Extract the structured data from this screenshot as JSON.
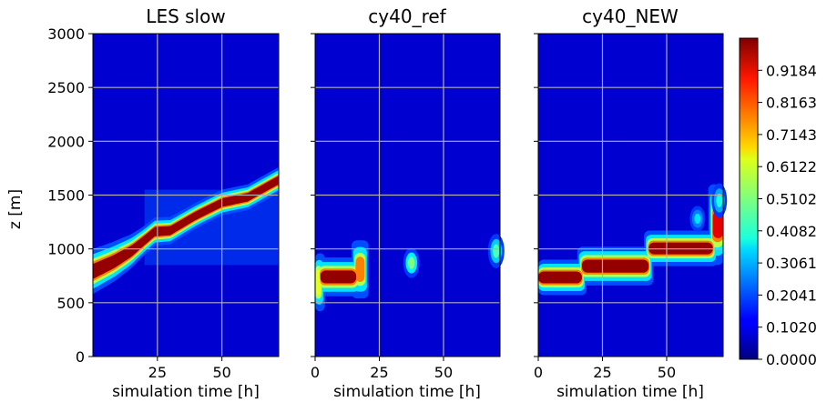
{
  "chart_data": {
    "type": "heatmap",
    "shared_ylabel": "z [m]",
    "ylim": [
      0,
      3000
    ],
    "yticks": [
      "0",
      "500",
      "1000",
      "1500",
      "2000",
      "2500",
      "3000"
    ],
    "grid": true,
    "panels": [
      {
        "title": "LES slow",
        "xlabel": "simulation time [h]",
        "xlim": [
          0,
          72
        ],
        "xticks": [
          "25",
          "50"
        ],
        "x_tick_values": [
          25,
          50
        ],
        "layer": {
          "kind": "rising",
          "points": [
            [
              0,
              790
            ],
            [
              8,
              880
            ],
            [
              15,
              980
            ],
            [
              24,
              1160
            ],
            [
              30,
              1170
            ],
            [
              40,
              1310
            ],
            [
              50,
              1430
            ],
            [
              60,
              1480
            ],
            [
              72,
              1640
            ]
          ],
          "thickness": [
            [
              0,
              140
            ],
            [
              10,
              120
            ],
            [
              20,
              90
            ],
            [
              40,
              80
            ],
            [
              72,
              80
            ]
          ]
        },
        "faint_regions": [
          {
            "x": [
              20,
              72
            ],
            "y": [
              850,
              1550
            ],
            "level": 0.06
          }
        ]
      },
      {
        "title": "cy40_ref",
        "xlabel": "simulation time [h]",
        "xlim": [
          0,
          72
        ],
        "xticks": [
          "0",
          "25",
          "50"
        ],
        "x_tick_values": [
          0,
          25,
          50
        ],
        "layer": {
          "kind": "segments",
          "segments": [
            {
              "x": [
                0.5,
                2
              ],
              "y": [
                600,
                780
              ],
              "level": 0.6
            },
            {
              "x": [
                2,
                16
              ],
              "y": [
                680,
                800
              ],
              "level": 1.0
            },
            {
              "x": [
                16,
                19
              ],
              "y": [
                720,
                900
              ],
              "level": 0.75
            }
          ]
        },
        "blobs": [
          {
            "x": 37.5,
            "y": 870,
            "rx": 1.6,
            "ry": 70,
            "level": 0.35
          },
          {
            "x": 70.5,
            "y": 980,
            "rx": 1.6,
            "ry": 80,
            "level": 0.3
          }
        ]
      },
      {
        "title": "cy40_NEW",
        "xlabel": "simulation time [h]",
        "xlim": [
          0,
          72
        ],
        "xticks": [
          "0",
          "25",
          "50"
        ],
        "x_tick_values": [
          0,
          25,
          50
        ],
        "layer": {
          "kind": "segments",
          "segments": [
            {
              "x": [
                0,
                17
              ],
              "y": [
                680,
                790
              ],
              "level": 1.0
            },
            {
              "x": [
                17,
                43
              ],
              "y": [
                780,
                900
              ],
              "level": 1.0
            },
            {
              "x": [
                43,
                68
              ],
              "y": [
                950,
                1060
              ],
              "level": 1.0
            },
            {
              "x": [
                68,
                72
              ],
              "y": [
                1100,
                1350
              ],
              "level": 0.9
            }
          ]
        },
        "blobs": [
          {
            "x": 62,
            "y": 1280,
            "rx": 1.5,
            "ry": 60,
            "level": 0.2
          },
          {
            "x": 70.5,
            "y": 1450,
            "rx": 1.5,
            "ry": 80,
            "level": 0.25
          }
        ]
      }
    ],
    "colorbar": {
      "min": 0,
      "max": 1.0204,
      "colormap": "jet",
      "ticks": [
        {
          "value": 0.0,
          "label": "0.0000"
        },
        {
          "value": 0.102,
          "label": "0.1020"
        },
        {
          "value": 0.2041,
          "label": "0.2041"
        },
        {
          "value": 0.3061,
          "label": "0.3061"
        },
        {
          "value": 0.4082,
          "label": "0.4082"
        },
        {
          "value": 0.5102,
          "label": "0.5102"
        },
        {
          "value": 0.6122,
          "label": "0.6122"
        },
        {
          "value": 0.7143,
          "label": "0.7143"
        },
        {
          "value": 0.8163,
          "label": "0.8163"
        },
        {
          "value": 0.9184,
          "label": "0.9184"
        }
      ]
    }
  }
}
